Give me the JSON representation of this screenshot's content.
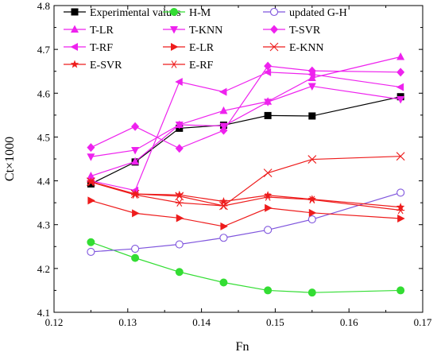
{
  "chart_data": {
    "type": "line",
    "xlabel": "Fn",
    "ylabel": "Ct×1000",
    "xlim": [
      0.12,
      0.17
    ],
    "ylim": [
      4.1,
      4.8
    ],
    "xticks": [
      0.12,
      0.13,
      0.14,
      0.15,
      0.16,
      0.17
    ],
    "yticks": [
      4.1,
      4.2,
      4.3,
      4.4,
      4.5,
      4.6,
      4.7,
      4.8
    ],
    "xtick_labels": [
      "0.12",
      "0.13",
      "0.14",
      "0.15",
      "0.16",
      "0.17"
    ],
    "ytick_labels": [
      "4.1",
      "4.2",
      "4.3",
      "4.4",
      "4.5",
      "4.6",
      "4.7",
      "4.8"
    ],
    "grid": false,
    "legend_position": "top-left",
    "legend_columns": 3,
    "x": [
      0.125,
      0.131,
      0.137,
      0.143,
      0.149,
      0.155,
      0.167
    ],
    "series": [
      {
        "name": "Experimental values",
        "color": "#000000",
        "marker": "square-filled",
        "values": [
          4.393,
          4.443,
          4.52,
          4.527,
          4.549,
          4.548,
          4.592
        ]
      },
      {
        "name": "H-M",
        "color": "#33dd33",
        "marker": "circle-filled",
        "values": [
          4.26,
          4.224,
          4.192,
          4.168,
          4.15,
          4.145,
          4.15
        ]
      },
      {
        "name": "updated G-H",
        "color": "#7f55dd",
        "marker": "circle-open",
        "values": [
          4.238,
          4.245,
          4.255,
          4.27,
          4.288,
          4.312,
          4.373
        ]
      },
      {
        "name": "T-LR",
        "color": "#ee22ee",
        "marker": "triangle-up",
        "values": [
          4.411,
          4.444,
          4.528,
          4.56,
          4.581,
          4.635,
          4.683
        ]
      },
      {
        "name": "T-KNN",
        "color": "#ee22ee",
        "marker": "triangle-down",
        "values": [
          4.455,
          4.47,
          4.528,
          4.525,
          4.58,
          4.616,
          4.586
        ]
      },
      {
        "name": "T-SVR",
        "color": "#ee22ee",
        "marker": "diamond",
        "values": [
          4.476,
          4.524,
          4.474,
          4.515,
          4.662,
          4.651,
          4.648
        ]
      },
      {
        "name": "T-RF",
        "color": "#ee22ee",
        "marker": "triangle-left",
        "values": [
          4.4,
          4.378,
          4.626,
          4.603,
          4.648,
          4.643,
          4.614
        ]
      },
      {
        "name": "E-LR",
        "color": "#ee1c1c",
        "marker": "triangle-right",
        "values": [
          4.355,
          4.326,
          4.315,
          4.296,
          4.338,
          4.327,
          4.314
        ]
      },
      {
        "name": "E-KNN",
        "color": "#ee1c1c",
        "marker": "x",
        "values": [
          4.398,
          4.37,
          4.365,
          4.343,
          4.418,
          4.449,
          4.456
        ]
      },
      {
        "name": "E-SVR",
        "color": "#ee1c1c",
        "marker": "star",
        "values": [
          4.398,
          4.37,
          4.368,
          4.353,
          4.367,
          4.358,
          4.34
        ]
      },
      {
        "name": "E-RF",
        "color": "#ee1c1c",
        "marker": "asterisk",
        "values": [
          4.397,
          4.368,
          4.35,
          4.343,
          4.363,
          4.357,
          4.333
        ]
      }
    ]
  }
}
